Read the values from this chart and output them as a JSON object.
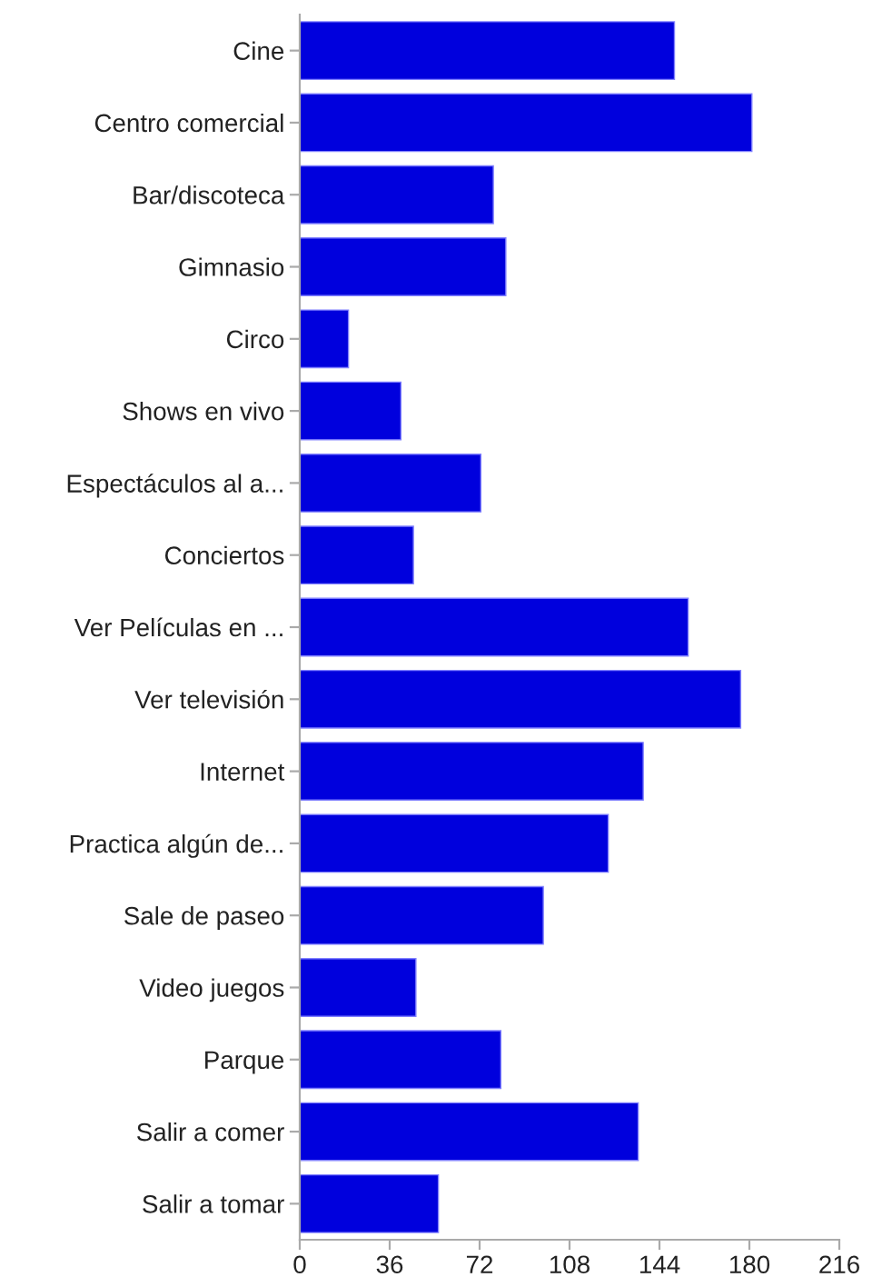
{
  "chart_data": {
    "type": "bar",
    "orientation": "horizontal",
    "categories": [
      "Cine",
      "Centro comercial",
      "Bar/discoteca",
      "Gimnasio",
      "Circo",
      "Shows en vivo",
      "Espectáculos al a...",
      "Conciertos",
      "Ver Películas en ...",
      "Ver televisión",
      "Internet",
      "Practica algún de...",
      "Sale de paseo",
      "Video juegos",
      "Parque",
      "Salir a comer",
      "Salir a tomar"
    ],
    "values": [
      150,
      181,
      77.5,
      82.5,
      19.5,
      40.5,
      72.5,
      45.5,
      155.5,
      176.5,
      137.5,
      123.5,
      97.5,
      46.5,
      80.5,
      135.5,
      55.5
    ],
    "color": "#0000dd",
    "xlim": [
      0,
      216
    ],
    "xticks": [
      0,
      36,
      72,
      108,
      144,
      180,
      216
    ],
    "grid": false,
    "legend": false
  }
}
